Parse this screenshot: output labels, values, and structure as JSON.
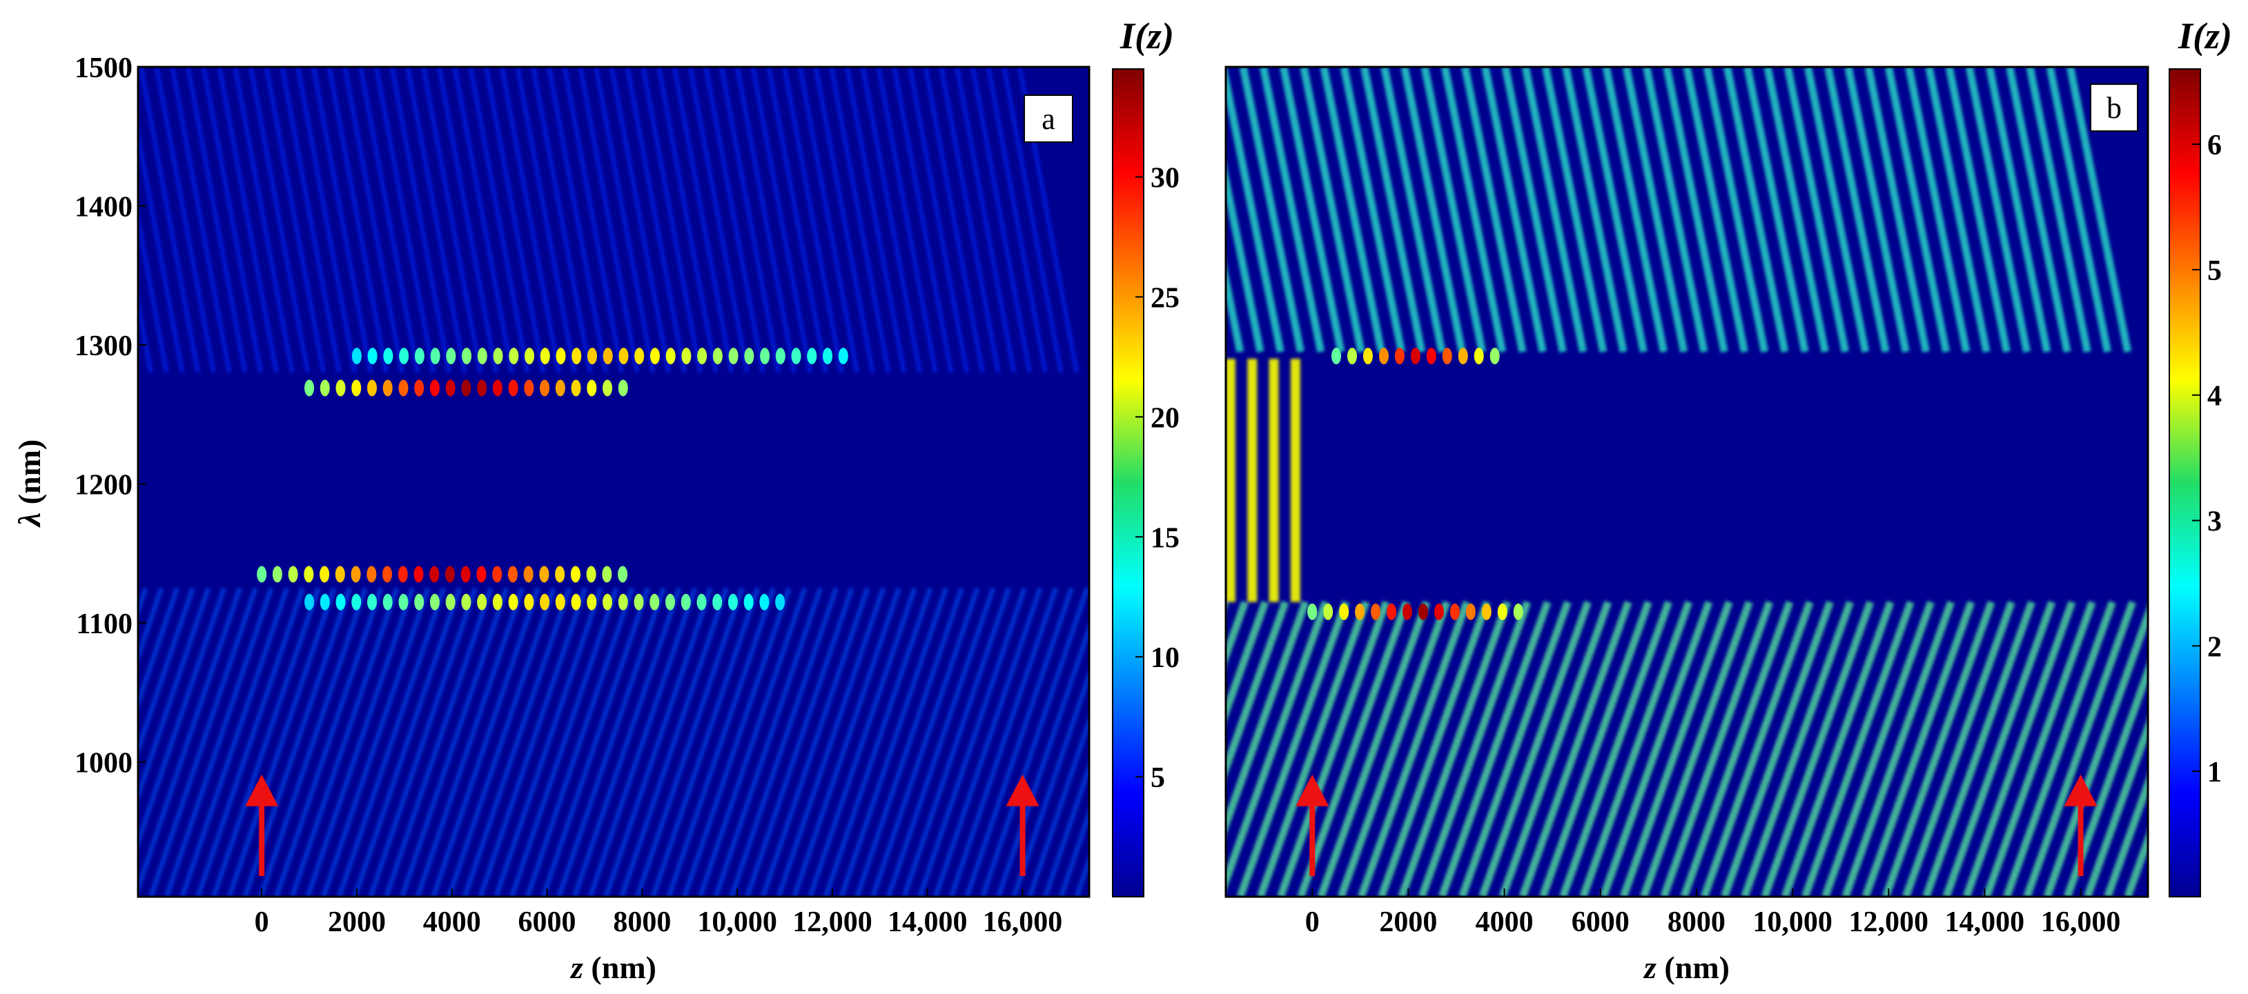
{
  "chart_data": [
    {
      "panel": "a",
      "type": "heatmap",
      "xlabel_var": "z",
      "xlabel_unit": " (nm)",
      "ylabel_var": "λ",
      "ylabel_unit": " (nm)",
      "xlim": [
        -2600,
        17400
      ],
      "ylim": [
        903,
        1500
      ],
      "xticks": [
        {
          "value": 0,
          "label": "0"
        },
        {
          "value": 2000,
          "label": "2000"
        },
        {
          "value": 4000,
          "label": "4000"
        },
        {
          "value": 6000,
          "label": "6000"
        },
        {
          "value": 8000,
          "label": "8000"
        },
        {
          "value": 10000,
          "label": "10,000"
        },
        {
          "value": 12000,
          "label": "12,000"
        },
        {
          "value": 14000,
          "label": "14,000"
        },
        {
          "value": 16000,
          "label": "16,000"
        }
      ],
      "yticks": [
        {
          "value": 1000,
          "label": "1000"
        },
        {
          "value": 1100,
          "label": "1100"
        },
        {
          "value": 1200,
          "label": "1200"
        },
        {
          "value": 1300,
          "label": "1300"
        },
        {
          "value": 1400,
          "label": "1400"
        },
        {
          "value": 1500,
          "label": "1500"
        }
      ],
      "colorbar": {
        "title": "I(z)",
        "min": 0,
        "max": 34.5,
        "ticks": [
          {
            "value": 5,
            "label": "5"
          },
          {
            "value": 10,
            "label": "10"
          },
          {
            "value": 15,
            "label": "15"
          },
          {
            "value": 20,
            "label": "20"
          },
          {
            "value": 25,
            "label": "25"
          },
          {
            "value": 30,
            "label": "30"
          }
        ]
      },
      "arrows_at_z": [
        0,
        16000
      ],
      "band_gap_nm": [
        1130,
        1275
      ],
      "features": [
        {
          "desc": "upper band-edge mode",
          "lambda": 1269,
          "z_range": [
            1000,
            7800
          ],
          "peak_I": 34
        },
        {
          "desc": "upper second mode",
          "lambda": 1292,
          "z_range": [
            2000,
            12500
          ],
          "peak_I": 24
        },
        {
          "desc": "lower band-edge mode",
          "lambda": 1135,
          "z_range": [
            0,
            7800
          ],
          "peak_I": 33
        },
        {
          "desc": "lower second mode",
          "lambda": 1115,
          "z_range": [
            1000,
            11000
          ],
          "peak_I": 23
        }
      ]
    },
    {
      "panel": "b",
      "type": "heatmap",
      "xlabel_var": "z",
      "xlabel_unit": " (nm)",
      "xlim": [
        -1800,
        17400
      ],
      "ylim": [
        903,
        1500
      ],
      "xticks": [
        {
          "value": 0,
          "label": "0"
        },
        {
          "value": 2000,
          "label": "2000"
        },
        {
          "value": 4000,
          "label": "4000"
        },
        {
          "value": 6000,
          "label": "6000"
        },
        {
          "value": 8000,
          "label": "8000"
        },
        {
          "value": 10000,
          "label": "10,000"
        },
        {
          "value": 12000,
          "label": "12,000"
        },
        {
          "value": 14000,
          "label": "14,000"
        },
        {
          "value": 16000,
          "label": "16,000"
        }
      ],
      "colorbar": {
        "title": "I(z)",
        "min": 0,
        "max": 6.6,
        "ticks": [
          {
            "value": 1,
            "label": "1"
          },
          {
            "value": 2,
            "label": "2"
          },
          {
            "value": 3,
            "label": "3"
          },
          {
            "value": 4,
            "label": "4"
          },
          {
            "value": 5,
            "label": "5"
          },
          {
            "value": 6,
            "label": "6"
          }
        ]
      },
      "arrows_at_z": [
        0,
        16000
      ],
      "band_gap_nm": [
        1120,
        1290
      ],
      "features": [
        {
          "desc": "upper band-edge mode",
          "lambda": 1292,
          "z_range": [
            500,
            4000
          ],
          "peak_I": 6.2
        },
        {
          "desc": "lower band-edge mode",
          "lambda": 1108,
          "z_range": [
            0,
            4500
          ],
          "peak_I": 6.5
        },
        {
          "desc": "incident field fringes",
          "z_range": [
            -1800,
            0
          ],
          "peak_I": 4.5
        }
      ]
    }
  ]
}
